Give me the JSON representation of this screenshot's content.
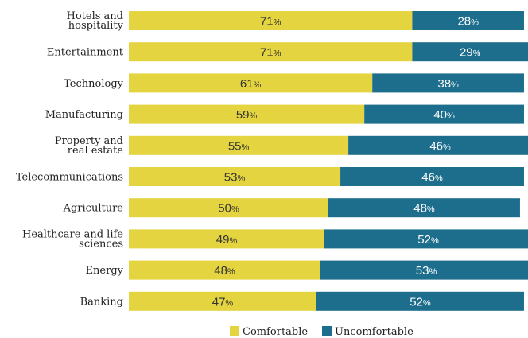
{
  "chart_data": {
    "type": "bar",
    "orientation": "horizontal",
    "stacked": true,
    "categories": [
      "Hotels and hospitality",
      "Entertainment",
      "Technology",
      "Manufacturing",
      "Property and real estate",
      "Telecommunications",
      "Agriculture",
      "Healthcare and life sciences",
      "Energy",
      "Banking"
    ],
    "category_lines": [
      [
        "Hotels and",
        "hospitality"
      ],
      [
        "Entertainment"
      ],
      [
        "Technology"
      ],
      [
        "Manufacturing"
      ],
      [
        "Property and",
        "real estate"
      ],
      [
        "Telecommunications"
      ],
      [
        "Agriculture"
      ],
      [
        "Healthcare and life",
        "sciences"
      ],
      [
        "Energy"
      ],
      [
        "Banking"
      ]
    ],
    "series": [
      {
        "name": "Comfortable",
        "color": "#e3d440",
        "text_color": "#333333",
        "values": [
          71,
          71,
          61,
          59,
          55,
          53,
          50,
          49,
          48,
          47
        ]
      },
      {
        "name": "Uncomfortable",
        "color": "#1d6e8c",
        "text_color": "#ffffff",
        "values": [
          28,
          29,
          38,
          40,
          46,
          46,
          48,
          52,
          53,
          52
        ]
      }
    ],
    "value_suffix": "%",
    "xlim": [
      0,
      100
    ],
    "title": "",
    "xlabel": "",
    "ylabel": "",
    "grid": false,
    "legend": "bottom-center"
  }
}
